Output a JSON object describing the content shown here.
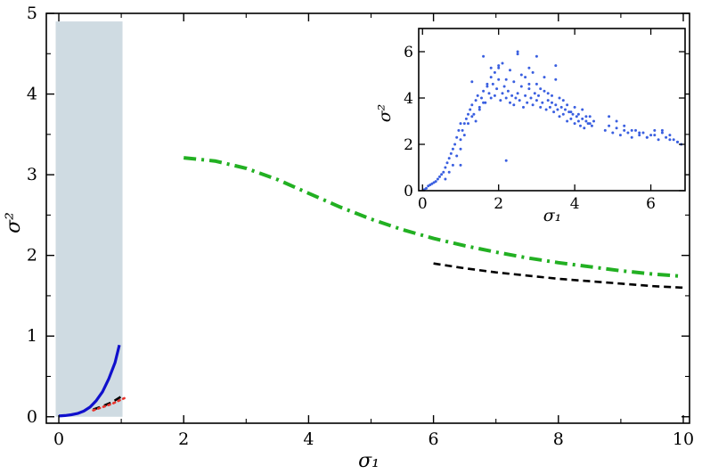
{
  "chart_data": [
    {
      "type": "line",
      "title": "",
      "xlabel": "σ₁",
      "ylabel": "σ²",
      "xlim": [
        -0.2,
        10.1
      ],
      "ylim": [
        -0.08,
        5.0
      ],
      "xticks": [
        "0",
        "2",
        "4",
        "6",
        "8",
        "10"
      ],
      "yticks": [
        "0",
        "1",
        "2",
        "3",
        "4",
        "5"
      ],
      "grid": false,
      "shaded_region": {
        "x": [
          -0.05,
          1.02
        ],
        "y": [
          0,
          4.9
        ],
        "color": "#cfdbe2"
      },
      "series": [
        {
          "style": "solid",
          "color": "#1010cc",
          "x": [
            0,
            0.1,
            0.2,
            0.3,
            0.4,
            0.5,
            0.6,
            0.7,
            0.8,
            0.9,
            0.97
          ],
          "y": [
            0.01,
            0.015,
            0.025,
            0.04,
            0.07,
            0.12,
            0.2,
            0.31,
            0.47,
            0.67,
            0.89
          ]
        },
        {
          "style": "dashed",
          "color": "#000000",
          "x": [
            0.55,
            0.7,
            0.85,
            1.0
          ],
          "y": [
            0.09,
            0.13,
            0.18,
            0.25
          ]
        },
        {
          "style": "dotted",
          "color": "#e8322b",
          "x": [
            0.55,
            0.7,
            0.85,
            1.05
          ],
          "y": [
            0.08,
            0.12,
            0.16,
            0.23
          ]
        },
        {
          "style": "dashdot",
          "color": "#22b022",
          "x": [
            2,
            2.5,
            3,
            3.5,
            4,
            4.5,
            5,
            5.5,
            6,
            6.5,
            7,
            7.5,
            8,
            8.5,
            9,
            9.5,
            10
          ],
          "y": [
            3.21,
            3.17,
            3.08,
            2.94,
            2.77,
            2.6,
            2.45,
            2.32,
            2.21,
            2.12,
            2.04,
            1.97,
            1.91,
            1.86,
            1.81,
            1.77,
            1.74
          ]
        },
        {
          "style": "dashed",
          "color": "#000000",
          "x": [
            6,
            6.5,
            7,
            7.5,
            8,
            8.5,
            9,
            9.5,
            10
          ],
          "y": [
            1.9,
            1.84,
            1.79,
            1.75,
            1.71,
            1.68,
            1.65,
            1.62,
            1.6
          ]
        }
      ]
    },
    {
      "type": "scatter",
      "title": "",
      "xlabel": "σ₁",
      "ylabel": "σ²",
      "xlim": [
        -0.1,
        6.9
      ],
      "ylim": [
        0,
        7
      ],
      "xticks": [
        "0",
        "2",
        "4",
        "6"
      ],
      "yticks": [
        "0",
        "2",
        "4",
        "6"
      ],
      "grid": false,
      "marker_color": "#3a5fe0",
      "x": [
        0.05,
        0.1,
        0.15,
        0.2,
        0.25,
        0.3,
        0.35,
        0.4,
        0.45,
        0.5,
        0.55,
        0.6,
        0.65,
        0.7,
        0.75,
        0.8,
        0.85,
        0.9,
        0.95,
        1.0,
        0.6,
        0.7,
        0.8,
        0.9,
        1.0,
        1.05,
        1.1,
        1.15,
        1.2,
        1.25,
        1.3,
        1.35,
        1.4,
        1.45,
        1.5,
        1.55,
        1.6,
        1.65,
        1.7,
        1.75,
        1.8,
        1.85,
        1.9,
        1.95,
        2.0,
        2.05,
        2.1,
        2.15,
        2.2,
        2.25,
        2.3,
        2.35,
        2.4,
        2.45,
        2.5,
        2.55,
        2.6,
        2.65,
        2.7,
        2.75,
        2.8,
        2.85,
        2.9,
        2.95,
        3.0,
        3.05,
        3.1,
        3.15,
        3.2,
        3.25,
        3.3,
        3.35,
        3.4,
        3.45,
        3.5,
        3.55,
        3.6,
        3.65,
        3.7,
        3.75,
        3.8,
        3.85,
        3.9,
        3.95,
        4.0,
        4.05,
        4.1,
        4.15,
        4.2,
        4.25,
        4.3,
        4.35,
        4.4,
        4.45,
        4.5,
        1.0,
        1.1,
        1.2,
        1.3,
        1.4,
        1.5,
        1.6,
        1.7,
        1.8,
        1.9,
        2.0,
        2.1,
        2.2,
        2.3,
        2.4,
        2.5,
        2.6,
        2.7,
        2.8,
        2.9,
        3.0,
        3.1,
        3.2,
        3.3,
        3.4,
        3.5,
        3.6,
        3.7,
        3.8,
        3.9,
        4.0,
        4.1,
        4.2,
        4.3,
        4.4,
        4.8,
        4.9,
        5.0,
        5.1,
        5.2,
        5.3,
        5.4,
        5.5,
        5.6,
        5.7,
        5.8,
        5.9,
        6.0,
        6.1,
        6.2,
        6.3,
        6.4,
        6.5,
        6.6,
        6.7,
        6.8,
        4.9,
        5.1,
        5.3,
        5.5,
        5.7,
        5.9,
        6.1,
        6.3,
        6.5,
        6.7,
        1.0,
        1.3,
        1.8,
        2.2,
        2.5,
        3.0,
        3.5,
        1.6,
        2.0,
        2.8
      ],
      "y": [
        0.05,
        0.1,
        0.2,
        0.25,
        0.3,
        0.35,
        0.4,
        0.5,
        0.6,
        0.7,
        0.8,
        1.0,
        1.2,
        1.4,
        1.6,
        1.8,
        2.0,
        2.3,
        2.6,
        2.9,
        0.5,
        0.8,
        1.1,
        1.5,
        2.2,
        2.6,
        2.9,
        3.1,
        3.3,
        3.5,
        3.7,
        3.3,
        3.9,
        4.1,
        3.6,
        4.0,
        4.3,
        3.8,
        4.5,
        4.2,
        4.0,
        4.6,
        4.1,
        4.4,
        4.8,
        3.9,
        4.2,
        4.5,
        4.0,
        4.3,
        3.8,
        4.1,
        3.7,
        4.0,
        4.2,
        3.9,
        4.5,
        3.6,
        4.1,
        3.8,
        4.4,
        4.0,
        3.7,
        4.2,
        3.9,
        4.1,
        3.6,
        3.8,
        4.3,
        3.5,
        3.9,
        3.6,
        3.8,
        3.4,
        3.7,
        3.5,
        3.2,
        3.6,
        3.3,
        3.5,
        3.0,
        3.4,
        3.1,
        3.3,
        2.9,
        3.2,
        3.0,
        2.8,
        3.1,
        2.7,
        3.0,
        2.9,
        3.2,
        2.8,
        3.0,
        1.8,
        2.4,
        2.9,
        3.2,
        3.0,
        3.5,
        3.8,
        4.6,
        4.9,
        5.1,
        5.3,
        5.5,
        4.8,
        5.2,
        4.7,
        5.9,
        5.0,
        4.9,
        5.3,
        5.1,
        4.6,
        4.4,
        4.9,
        4.2,
        4.1,
        4.8,
        4.0,
        3.9,
        3.7,
        3.4,
        3.6,
        3.3,
        3.5,
        3.2,
        2.9,
        2.6,
        2.8,
        2.5,
        2.7,
        2.4,
        2.6,
        2.5,
        2.3,
        2.6,
        2.4,
        2.5,
        2.3,
        2.4,
        2.6,
        2.2,
        2.5,
        2.3,
        2.4,
        2.2,
        2.1,
        2.0,
        3.2,
        3.0,
        2.8,
        2.6,
        2.5,
        2.3,
        2.4,
        2.6,
        2.2,
        2.1,
        1.1,
        4.7,
        5.3,
        1.3,
        6.0,
        5.8,
        5.4,
        5.8,
        5.4,
        4.6
      ]
    }
  ]
}
